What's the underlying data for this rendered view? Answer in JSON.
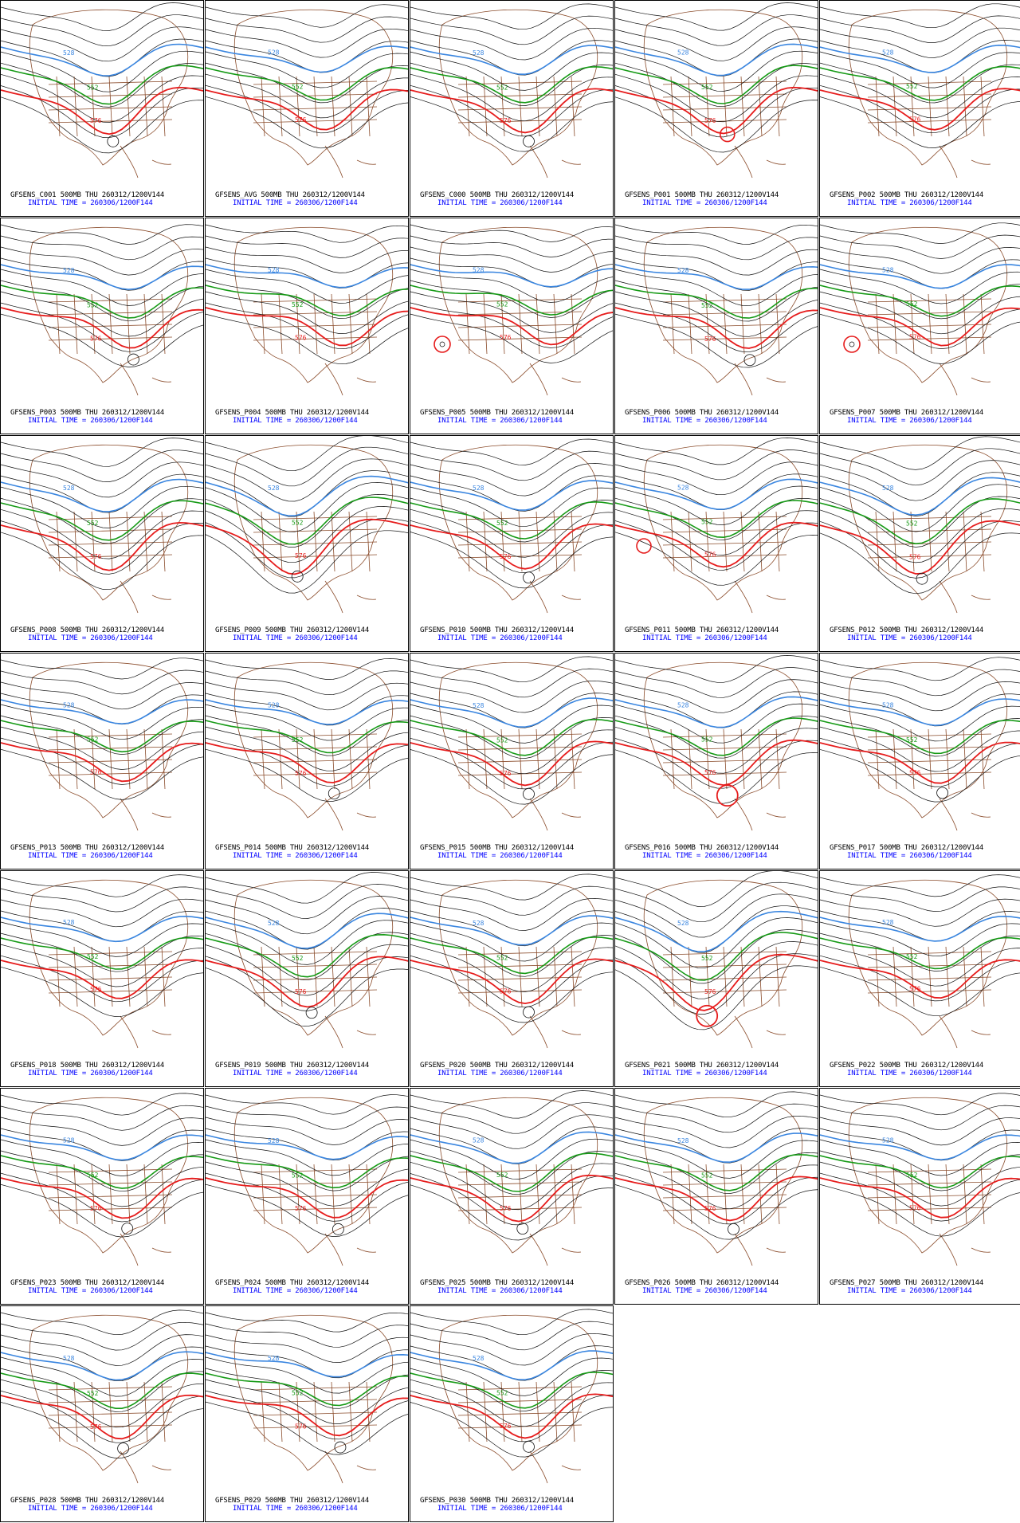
{
  "title_suffix": "500MB THU 260312/1200V144",
  "initial_time": "INITIAL TIME = 260306/1200F144",
  "contour_levels": {
    "blue": "528",
    "green": "552",
    "red": "576"
  },
  "colors": {
    "blue": "#3a86e0",
    "green": "#169a16",
    "red": "#e61c1c",
    "black": "#111111",
    "map": "#8a4b2a"
  },
  "members": [
    "GFSENS_C001",
    "GFSENS_AVG",
    "GFSENS_C000",
    "GFSENS_P001",
    "GFSENS_P002",
    "GFSENS_P003",
    "GFSENS_P004",
    "GFSENS_P005",
    "GFSENS_P006",
    "GFSENS_P007",
    "GFSENS_P008",
    "GFSENS_P009",
    "GFSENS_P010",
    "GFSENS_P011",
    "GFSENS_P012",
    "GFSENS_P013",
    "GFSENS_P014",
    "GFSENS_P015",
    "GFSENS_P016",
    "GFSENS_P017",
    "GFSENS_P018",
    "GFSENS_P019",
    "GFSENS_P020",
    "GFSENS_P021",
    "GFSENS_P022",
    "GFSENS_P023",
    "GFSENS_P024",
    "GFSENS_P025",
    "GFSENS_P026",
    "GFSENS_P027",
    "GFSENS_P028",
    "GFSENS_P029",
    "GFSENS_P030"
  ],
  "panels": [
    {
      "label_1": "GFSENS_C001 500MB THU 260312/1200V144",
      "label_2": "INITIAL TIME = 260306/1200F144"
    },
    {
      "label_1": "GFSENS_AVG 500MB THU 260312/1200V144",
      "label_2": "INITIAL TIME = 260306/1200F144"
    },
    {
      "label_1": "GFSENS_C000 500MB THU 260312/1200V144",
      "label_2": "INITIAL TIME = 260306/1200F144"
    },
    {
      "label_1": "GFSENS_P001 500MB THU 260312/1200V144",
      "label_2": "INITIAL TIME = 260306/1200F144"
    },
    {
      "label_1": "GFSENS_P002 500MB THU 260312/1200V144",
      "label_2": "INITIAL TIME = 260306/1200F144"
    },
    {
      "label_1": "GFSENS_P003 500MB THU 260312/1200V144",
      "label_2": "INITIAL TIME = 260306/1200F144"
    },
    {
      "label_1": "GFSENS_P004 500MB THU 260312/1200V144",
      "label_2": "INITIAL TIME = 260306/1200F144"
    },
    {
      "label_1": "GFSENS_P005 500MB THU 260312/1200V144",
      "label_2": "INITIAL TIME = 260306/1200F144"
    },
    {
      "label_1": "GFSENS_P006 500MB THU 260312/1200V144",
      "label_2": "INITIAL TIME = 260306/1200F144"
    },
    {
      "label_1": "GFSENS_P007 500MB THU 260312/1200V144",
      "label_2": "INITIAL TIME = 260306/1200F144"
    },
    {
      "label_1": "GFSENS_P008 500MB THU 260312/1200V144",
      "label_2": "INITIAL TIME = 260306/1200F144"
    },
    {
      "label_1": "GFSENS_P009 500MB THU 260312/1200V144",
      "label_2": "INITIAL TIME = 260306/1200F144"
    },
    {
      "label_1": "GFSENS_P010 500MB THU 260312/1200V144",
      "label_2": "INITIAL TIME = 260306/1200F144"
    },
    {
      "label_1": "GFSENS_P011 500MB THU 260312/1200V144",
      "label_2": "INITIAL TIME = 260306/1200F144"
    },
    {
      "label_1": "GFSENS_P012 500MB THU 260312/1200V144",
      "label_2": "INITIAL TIME = 260306/1200F144"
    },
    {
      "label_1": "GFSENS_P013 500MB THU 260312/1200V144",
      "label_2": "INITIAL TIME = 260306/1200F144"
    },
    {
      "label_1": "GFSENS_P014 500MB THU 260312/1200V144",
      "label_2": "INITIAL TIME = 260306/1200F144"
    },
    {
      "label_1": "GFSENS_P015 500MB THU 260312/1200V144",
      "label_2": "INITIAL TIME = 260306/1200F144"
    },
    {
      "label_1": "GFSENS_P016 500MB THU 260312/1200V144",
      "label_2": "INITIAL TIME = 260306/1200F144"
    },
    {
      "label_1": "GFSENS_P017 500MB THU 260312/1200V144",
      "label_2": "INITIAL TIME = 260306/1200F144"
    },
    {
      "label_1": "GFSENS_P018 500MB THU 260312/1200V144",
      "label_2": "INITIAL TIME = 260306/1200F144"
    },
    {
      "label_1": "GFSENS_P019 500MB THU 260312/1200V144",
      "label_2": "INITIAL TIME = 260306/1200F144"
    },
    {
      "label_1": "GFSENS_P020 500MB THU 260312/1200V144",
      "label_2": "INITIAL TIME = 260306/1200F144"
    },
    {
      "label_1": "GFSENS_P021 500MB THU 260312/1200V144",
      "label_2": "INITIAL TIME = 260306/1200F144"
    },
    {
      "label_1": "GFSENS_P022 500MB THU 260312/1200V144",
      "label_2": "INITIAL TIME = 260306/1200F144"
    },
    {
      "label_1": "GFSENS_P023 500MB THU 260312/1200V144",
      "label_2": "INITIAL TIME = 260306/1200F144"
    },
    {
      "label_1": "GFSENS_P024 500MB THU 260312/1200V144",
      "label_2": "INITIAL TIME = 260306/1200F144"
    },
    {
      "label_1": "GFSENS_P025 500MB THU 260312/1200V144",
      "label_2": "INITIAL TIME = 260306/1200F144"
    },
    {
      "label_1": "GFSENS_P026 500MB THU 260312/1200V144",
      "label_2": "INITIAL TIME = 260306/1200F144"
    },
    {
      "label_1": "GFSENS_P027 500MB THU 260312/1200V144",
      "label_2": "INITIAL TIME = 260306/1200F144"
    },
    {
      "label_1": "GFSENS_P028 500MB THU 260312/1200V144",
      "label_2": "INITIAL TIME = 260306/1200F144"
    },
    {
      "label_1": "GFSENS_P029 500MB THU 260312/1200V144",
      "label_2": "INITIAL TIME = 260306/1200F144"
    },
    {
      "label_1": "GFSENS_P030 500MB THU 260312/1200V144",
      "label_2": "INITIAL TIME = 260306/1200F144"
    }
  ]
}
